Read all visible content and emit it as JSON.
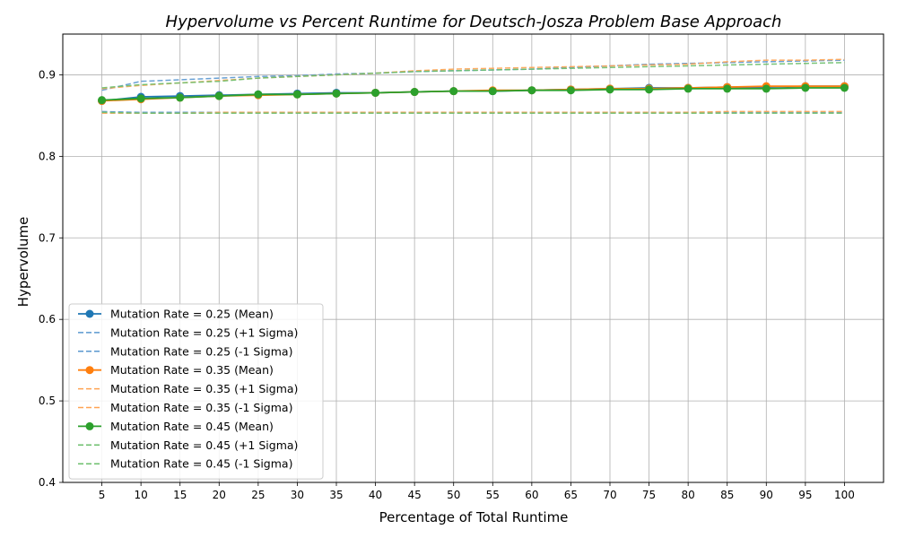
{
  "chart_data": {
    "type": "line",
    "title": "Hypervolume vs Percent Runtime for Deutsch-Josza Problem Base Approach",
    "xlabel": "Percentage of Total Runtime",
    "ylabel": "Hypervolume",
    "x": [
      5,
      10,
      15,
      20,
      25,
      30,
      35,
      40,
      45,
      50,
      55,
      60,
      65,
      70,
      75,
      80,
      85,
      90,
      95,
      100
    ],
    "xticks": [
      "5",
      "10",
      "15",
      "20",
      "25",
      "30",
      "35",
      "40",
      "45",
      "50",
      "55",
      "60",
      "65",
      "70",
      "75",
      "80",
      "85",
      "90",
      "95",
      "100"
    ],
    "xlim": [
      0,
      105
    ],
    "ylim": [
      0.4,
      0.95
    ],
    "yticks": [
      "0.4",
      "0.5",
      "0.6",
      "0.7",
      "0.8",
      "0.9"
    ],
    "grid": true,
    "legend_position": "lower-left",
    "series": [
      {
        "name": "Mutation Rate = 0.25 (Mean)",
        "color": "#1f77b4",
        "style": "solid-marker",
        "values": [
          0.868,
          0.873,
          0.874,
          0.875,
          0.876,
          0.877,
          0.878,
          0.878,
          0.879,
          0.88,
          0.88,
          0.881,
          0.882,
          0.883,
          0.884,
          0.884,
          0.885,
          0.885,
          0.886,
          0.886
        ]
      },
      {
        "name": "Mutation Rate = 0.25 (+1 Sigma)",
        "color": "#5a97cf",
        "style": "dashed",
        "values": [
          0.881,
          0.892,
          0.894,
          0.896,
          0.898,
          0.899,
          0.901,
          0.902,
          0.904,
          0.905,
          0.906,
          0.907,
          0.909,
          0.911,
          0.913,
          0.914,
          0.915,
          0.916,
          0.917,
          0.918
        ]
      },
      {
        "name": "Mutation Rate = 0.25 (-1 Sigma)",
        "color": "#5a97cf",
        "style": "dashed",
        "values": [
          0.855,
          0.854,
          0.854,
          0.854,
          0.854,
          0.854,
          0.854,
          0.854,
          0.854,
          0.854,
          0.854,
          0.854,
          0.854,
          0.854,
          0.854,
          0.854,
          0.854,
          0.854,
          0.854,
          0.854
        ]
      },
      {
        "name": "Mutation Rate = 0.35 (Mean)",
        "color": "#ff7f0e",
        "style": "solid-marker",
        "values": [
          0.868,
          0.87,
          0.872,
          0.874,
          0.875,
          0.876,
          0.877,
          0.878,
          0.879,
          0.88,
          0.881,
          0.881,
          0.882,
          0.883,
          0.883,
          0.884,
          0.885,
          0.886,
          0.886,
          0.886
        ]
      },
      {
        "name": "Mutation Rate = 0.35 (+1 Sigma)",
        "color": "#ffa352",
        "style": "dashed",
        "values": [
          0.883,
          0.887,
          0.89,
          0.893,
          0.896,
          0.898,
          0.9,
          0.902,
          0.905,
          0.907,
          0.908,
          0.909,
          0.91,
          0.911,
          0.912,
          0.913,
          0.916,
          0.918,
          0.918,
          0.919
        ]
      },
      {
        "name": "Mutation Rate = 0.35 (-1 Sigma)",
        "color": "#ffa352",
        "style": "dashed",
        "values": [
          0.853,
          0.853,
          0.853,
          0.854,
          0.854,
          0.854,
          0.854,
          0.854,
          0.854,
          0.854,
          0.854,
          0.854,
          0.854,
          0.854,
          0.854,
          0.854,
          0.855,
          0.855,
          0.855,
          0.855
        ]
      },
      {
        "name": "Mutation Rate = 0.45 (Mean)",
        "color": "#2ca02c",
        "style": "solid-marker",
        "values": [
          0.869,
          0.871,
          0.872,
          0.874,
          0.876,
          0.876,
          0.877,
          0.878,
          0.879,
          0.88,
          0.88,
          0.881,
          0.881,
          0.882,
          0.882,
          0.883,
          0.883,
          0.883,
          0.884,
          0.884
        ]
      },
      {
        "name": "Mutation Rate = 0.45 (+1 Sigma)",
        "color": "#6cbf6c",
        "style": "dashed",
        "values": [
          0.884,
          0.888,
          0.89,
          0.892,
          0.896,
          0.898,
          0.9,
          0.902,
          0.904,
          0.905,
          0.906,
          0.907,
          0.908,
          0.909,
          0.91,
          0.911,
          0.912,
          0.913,
          0.914,
          0.915
        ]
      },
      {
        "name": "Mutation Rate = 0.45 (-1 Sigma)",
        "color": "#6cbf6c",
        "style": "dashed",
        "values": [
          0.854,
          0.853,
          0.853,
          0.853,
          0.853,
          0.853,
          0.853,
          0.853,
          0.853,
          0.853,
          0.853,
          0.853,
          0.853,
          0.853,
          0.853,
          0.853,
          0.853,
          0.853,
          0.853,
          0.853
        ]
      }
    ]
  }
}
